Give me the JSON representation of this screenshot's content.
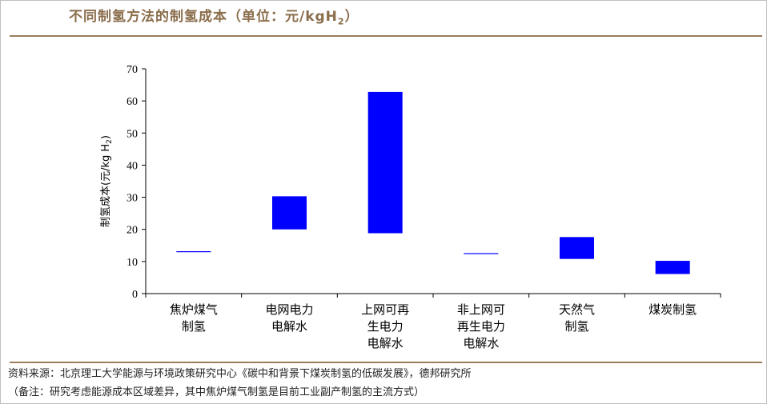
{
  "title_main": "不同制氢方法的制氢成本（单位：元/kgH",
  "title_sub": "2",
  "title_end": "）",
  "source_line1": "资料来源：北京理工大学能源与环境政策研究中心《碳中和背景下煤炭制氢的低碳发展》，德邦研究所",
  "source_line2": "（备注：研究考虑能源成本区域差异，其中焦炉煤气制氢是目前工业副产制氢的主流方式）",
  "colors": {
    "bar": "#0000ff",
    "title": "#8a6d4b",
    "rule": "#9b7e5c"
  },
  "chart_data": {
    "type": "bar",
    "subtype": "floating-range",
    "ylabel": "制氢成本(元/kg H2)",
    "ylim": [
      0,
      70
    ],
    "yticks": [
      0,
      10,
      20,
      30,
      40,
      50,
      60,
      70
    ],
    "grid": false,
    "categories": [
      [
        "焦炉煤气",
        "制氢"
      ],
      [
        "电网电力",
        "电解水"
      ],
      [
        "上网可再",
        "生电力",
        "电解水"
      ],
      [
        "非上网可",
        "再生电力",
        "电解水"
      ],
      [
        "天然气",
        "制氢"
      ],
      [
        "煤炭制氢"
      ]
    ],
    "ranges": [
      [
        13.0,
        13.2
      ],
      [
        20.0,
        30.3
      ],
      [
        18.8,
        62.8
      ],
      [
        12.4,
        12.6
      ],
      [
        10.8,
        17.6
      ],
      [
        6.1,
        10.2
      ]
    ]
  }
}
